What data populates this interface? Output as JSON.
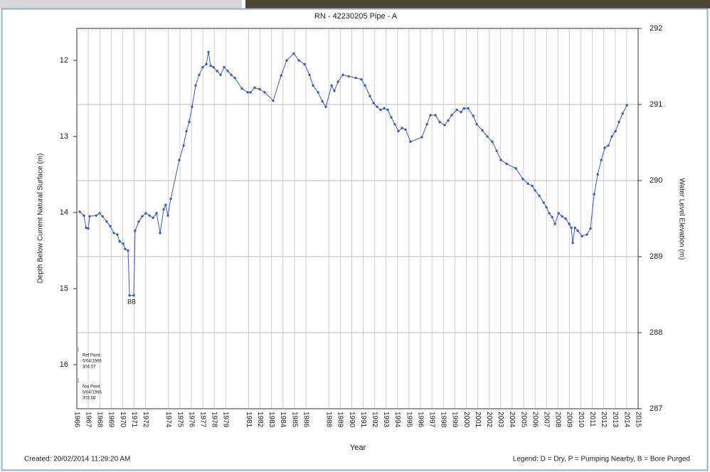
{
  "chart_data": {
    "type": "line",
    "title": "RN - 42230205 Pipe - A",
    "xlabel": "Year",
    "ylabel": "Depth Below Current Natural Surface (m)",
    "y2label": "Water Level Elevation (m)",
    "xlim": [
      1966,
      2015
    ],
    "xticks": [
      1966,
      1967,
      1968,
      1969,
      1970,
      1971,
      1972,
      1974,
      1975,
      1976,
      1977,
      1978,
      1979,
      1981,
      1982,
      1983,
      1984,
      1985,
      1986,
      1988,
      1989,
      1990,
      1991,
      1992,
      1993,
      1994,
      1995,
      1996,
      1997,
      1998,
      1999,
      2000,
      2001,
      2002,
      2003,
      2004,
      2005,
      2006,
      2007,
      2008,
      2009,
      2010,
      2011,
      2012,
      2013,
      2014,
      2015
    ],
    "ylim": [
      11.58,
      16.58
    ],
    "y_inverted": true,
    "yticks": [
      12,
      13,
      14,
      15,
      16
    ],
    "y2lim": [
      287,
      292
    ],
    "y2ticks": [
      287,
      288,
      289,
      290,
      291,
      292
    ],
    "grid": true,
    "x": [
      1966.25,
      1966.62,
      1966.81,
      1966.99,
      1967.12,
      1967.68,
      1967.99,
      1968.24,
      1968.61,
      1968.92,
      1969.23,
      1969.54,
      1969.73,
      1970.04,
      1970.22,
      1970.47,
      1970.6,
      1970.97,
      1971.09,
      1971.4,
      1971.71,
      1972.02,
      1972.34,
      1972.65,
      1972.96,
      1973.27,
      1973.58,
      1973.76,
      1973.95,
      1974.2,
      1974.94,
      1975.32,
      1975.57,
      1975.81,
      1976.06,
      1976.37,
      1976.68,
      1976.99,
      1977.3,
      1977.49,
      1977.68,
      1977.93,
      1978.24,
      1978.55,
      1978.86,
      1979.17,
      1979.48,
      1979.79,
      1980.41,
      1980.91,
      1981.16,
      1981.53,
      1981.96,
      1982.4,
      1983.14,
      1983.83,
      1984.32,
      1984.94,
      1985.38,
      1985.88,
      1986.31,
      1986.62,
      1987.06,
      1987.43,
      1987.74,
      1988.24,
      1988.48,
      1988.8,
      1989.23,
      1989.73,
      1990.35,
      1990.84,
      1991.16,
      1991.59,
      1991.9,
      1992.21,
      1992.52,
      1992.83,
      1993.14,
      1993.45,
      1993.76,
      1994.07,
      1994.39,
      1994.7,
      1995.13,
      1996.12,
      1996.56,
      1996.87,
      1997.3,
      1997.68,
      1998.11,
      1998.42,
      1998.73,
      1999.17,
      1999.54,
      1999.79,
      2000.16,
      2000.6,
      2000.91,
      2001.4,
      2001.84,
      2002.27,
      2002.65,
      2003.02,
      2003.52,
      2004.32,
      2004.94,
      2005.38,
      2005.75,
      2006.0,
      2006.37,
      2006.75,
      2006.99,
      2007.24,
      2007.49,
      2007.74,
      2008.05,
      2008.36,
      2008.67,
      2008.98,
      2009.17,
      2009.29,
      2009.48,
      2009.73,
      2010.1,
      2010.53,
      2010.84,
      2011.16,
      2011.47,
      2011.78,
      2012.09,
      2012.4,
      2012.71,
      2013.02,
      2013.33,
      2013.64,
      2014.01
    ],
    "series": [
      {
        "color": "#3a5bc7",
        "values": [
          13.99,
          14.04,
          14.2,
          14.21,
          14.05,
          14.04,
          14.01,
          14.05,
          14.12,
          14.18,
          14.27,
          14.29,
          14.38,
          14.41,
          14.48,
          14.5,
          15.09,
          15.09,
          14.24,
          14.12,
          14.05,
          14.01,
          14.04,
          14.07,
          14.01,
          14.27,
          13.96,
          13.9,
          14.04,
          13.82,
          13.31,
          13.12,
          12.93,
          12.81,
          12.61,
          12.33,
          12.19,
          12.09,
          12.05,
          11.89,
          12.07,
          12.09,
          12.14,
          12.19,
          12.09,
          12.14,
          12.19,
          12.23,
          12.37,
          12.42,
          12.42,
          12.36,
          12.38,
          12.42,
          12.53,
          12.2,
          12.0,
          11.91,
          12.0,
          12.05,
          12.19,
          12.33,
          12.42,
          12.54,
          12.61,
          12.33,
          12.4,
          12.28,
          12.19,
          12.21,
          12.23,
          12.25,
          12.33,
          12.47,
          12.56,
          12.61,
          12.65,
          12.63,
          12.65,
          12.75,
          12.84,
          12.93,
          12.89,
          12.91,
          13.07,
          13.01,
          12.84,
          12.72,
          12.72,
          12.81,
          12.85,
          12.79,
          12.72,
          12.65,
          12.68,
          12.63,
          12.63,
          12.73,
          12.84,
          12.92,
          13.0,
          13.07,
          13.19,
          13.31,
          13.36,
          13.42,
          13.56,
          13.62,
          13.65,
          13.71,
          13.78,
          13.87,
          13.93,
          14.01,
          14.06,
          14.15,
          14.01,
          14.05,
          14.08,
          14.15,
          14.2,
          14.4,
          14.2,
          14.24,
          14.31,
          14.29,
          14.21,
          13.76,
          13.5,
          13.31,
          13.15,
          13.12,
          13.0,
          12.93,
          12.81,
          12.7,
          12.59
        ]
      }
    ],
    "annotations": [
      {
        "text": "B",
        "x": 1970.6,
        "y": 15.18
      },
      {
        "text": "B",
        "x": 1970.97,
        "y": 15.18
      }
    ],
    "notes": [
      [
        "Ref Point:",
        "5/04/1966",
        "304.07"
      ],
      [
        "Nat Point:",
        "5/04/1966",
        "303.58"
      ]
    ]
  },
  "footer": {
    "created": "Created: 20/02/2014 11:29:20 AM",
    "legend": "Legend: D = Dry, P = Pumping Nearby, B = Bore Purged"
  }
}
